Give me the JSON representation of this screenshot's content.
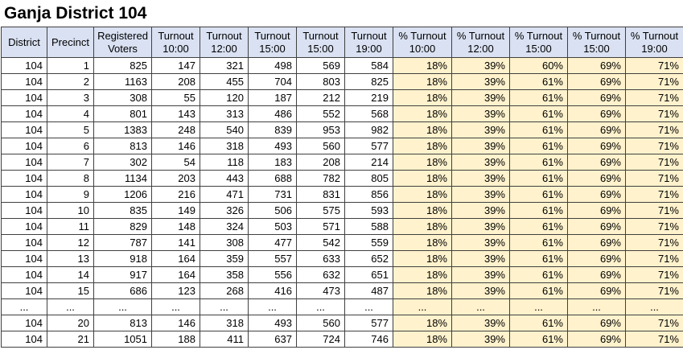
{
  "page": {
    "title": "Ganja District 104"
  },
  "colors": {
    "header_bg": "#D9E1F2",
    "percent_bg": "#FFF2CC",
    "border": "#404040",
    "text": "#000000"
  },
  "table": {
    "column_keys": [
      "district",
      "precinct",
      "registered-voters",
      "turnout-1000",
      "turnout-1200",
      "turnout-1500-a",
      "turnout-1500-b",
      "turnout-1900",
      "pct-turnout-1000",
      "pct-turnout-1200",
      "pct-turnout-1500-a",
      "pct-turnout-1500-b",
      "pct-turnout-1900"
    ],
    "headers": [
      "District",
      "Precinct",
      "Registered\nVoters",
      "Turnout\n10:00",
      "Turnout\n12:00",
      "Turnout\n15:00",
      "Turnout\n15:00",
      "Turnout\n19:00",
      "% Turnout\n10:00",
      "% Turnout\n12:00",
      "% Turnout\n15:00",
      "% Turnout\n15:00",
      "% Turnout\n19:00"
    ],
    "rows": [
      [
        "104",
        "1",
        "825",
        "147",
        "321",
        "498",
        "569",
        "584",
        "18%",
        "39%",
        "60%",
        "69%",
        "71%"
      ],
      [
        "104",
        "2",
        "1163",
        "208",
        "455",
        "704",
        "803",
        "825",
        "18%",
        "39%",
        "61%",
        "69%",
        "71%"
      ],
      [
        "104",
        "3",
        "308",
        "55",
        "120",
        "187",
        "212",
        "219",
        "18%",
        "39%",
        "61%",
        "69%",
        "71%"
      ],
      [
        "104",
        "4",
        "801",
        "143",
        "313",
        "486",
        "552",
        "568",
        "18%",
        "39%",
        "61%",
        "69%",
        "71%"
      ],
      [
        "104",
        "5",
        "1383",
        "248",
        "540",
        "839",
        "953",
        "982",
        "18%",
        "39%",
        "61%",
        "69%",
        "71%"
      ],
      [
        "104",
        "6",
        "813",
        "146",
        "318",
        "493",
        "560",
        "577",
        "18%",
        "39%",
        "61%",
        "69%",
        "71%"
      ],
      [
        "104",
        "7",
        "302",
        "54",
        "118",
        "183",
        "208",
        "214",
        "18%",
        "39%",
        "61%",
        "69%",
        "71%"
      ],
      [
        "104",
        "8",
        "1134",
        "203",
        "443",
        "688",
        "782",
        "805",
        "18%",
        "39%",
        "61%",
        "69%",
        "71%"
      ],
      [
        "104",
        "9",
        "1206",
        "216",
        "471",
        "731",
        "831",
        "856",
        "18%",
        "39%",
        "61%",
        "69%",
        "71%"
      ],
      [
        "104",
        "10",
        "835",
        "149",
        "326",
        "506",
        "575",
        "593",
        "18%",
        "39%",
        "61%",
        "69%",
        "71%"
      ],
      [
        "104",
        "11",
        "829",
        "148",
        "324",
        "503",
        "571",
        "588",
        "18%",
        "39%",
        "61%",
        "69%",
        "71%"
      ],
      [
        "104",
        "12",
        "787",
        "141",
        "308",
        "477",
        "542",
        "559",
        "18%",
        "39%",
        "61%",
        "69%",
        "71%"
      ],
      [
        "104",
        "13",
        "918",
        "164",
        "359",
        "557",
        "633",
        "652",
        "18%",
        "39%",
        "61%",
        "69%",
        "71%"
      ],
      [
        "104",
        "14",
        "917",
        "164",
        "358",
        "556",
        "632",
        "651",
        "18%",
        "39%",
        "61%",
        "69%",
        "71%"
      ],
      [
        "104",
        "15",
        "686",
        "123",
        "268",
        "416",
        "473",
        "487",
        "18%",
        "39%",
        "61%",
        "69%",
        "71%"
      ],
      [
        "...",
        "...",
        "...",
        "...",
        "...",
        "...",
        "...",
        "...",
        "...",
        "...",
        "...",
        "...",
        "..."
      ],
      [
        "104",
        "20",
        "813",
        "146",
        "318",
        "493",
        "560",
        "577",
        "18%",
        "39%",
        "61%",
        "69%",
        "71%"
      ],
      [
        "104",
        "21",
        "1051",
        "188",
        "411",
        "637",
        "724",
        "746",
        "18%",
        "39%",
        "61%",
        "69%",
        "71%"
      ]
    ]
  }
}
